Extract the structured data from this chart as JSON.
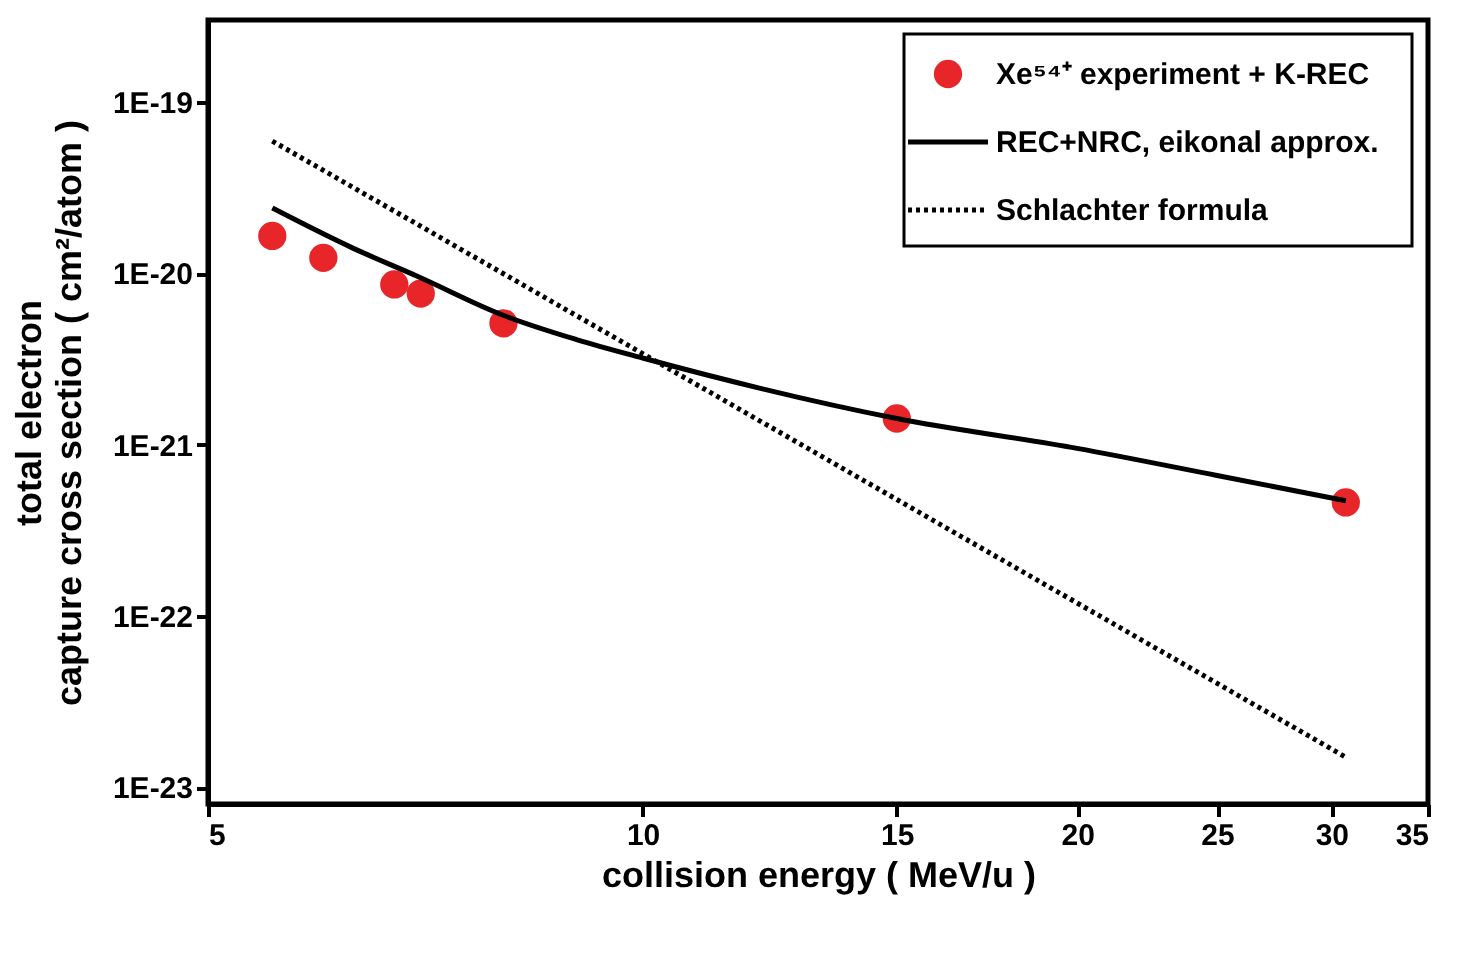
{
  "chart_data": {
    "type": "scatter",
    "xlabel": "collision energy ( MeV/u )",
    "ylabel": "total electron\ncapture cross section ( cm²/atom )",
    "log": "xy",
    "xlim": [
      5,
      35
    ],
    "xticks": [
      5,
      10,
      15,
      20,
      25,
      30,
      35
    ],
    "ylim": [
      8e-24,
      3e-19
    ],
    "yticks": [
      {
        "value": 1e-19,
        "label": "1E-19"
      },
      {
        "value": 1e-20,
        "label": "1E-20"
      },
      {
        "value": 1e-21,
        "label": "1E-21"
      },
      {
        "value": 1e-22,
        "label": "1E-22"
      },
      {
        "value": 1e-23,
        "label": "1E-23"
      }
    ],
    "grid": false,
    "legend": "top right",
    "series": [
      {
        "name": "Xe⁵⁴⁺ experiment + K-REC",
        "marker": "circle",
        "color": "#e8262a",
        "x": [
          5.54,
          6.01,
          6.73,
          7.02,
          8.01,
          15,
          30.7
        ],
        "values": [
          1.65e-20,
          1.23e-20,
          8.6e-21,
          7.6e-21,
          5.1e-21,
          1.42e-21,
          4.6e-22
        ]
      },
      {
        "name": "REC+NRC, eikonal approx.",
        "type": "line",
        "line_style": "solid",
        "color": "#000000",
        "x": [
          5.54,
          6.3,
          7,
          8,
          9,
          10,
          15,
          20,
          25,
          30.7
        ],
        "values": [
          2.4e-20,
          1.4e-20,
          9.5e-21,
          5.7e-21,
          4.1e-21,
          3.2e-21,
          1.42e-21,
          9.5e-22,
          6.6e-22,
          4.7e-22
        ]
      },
      {
        "name": "Schlachter formula",
        "type": "line",
        "line_style": "dotted",
        "color": "#000000",
        "x": [
          5.54,
          30.7
        ],
        "values": [
          5.9e-20,
          1.5e-23
        ]
      }
    ]
  }
}
